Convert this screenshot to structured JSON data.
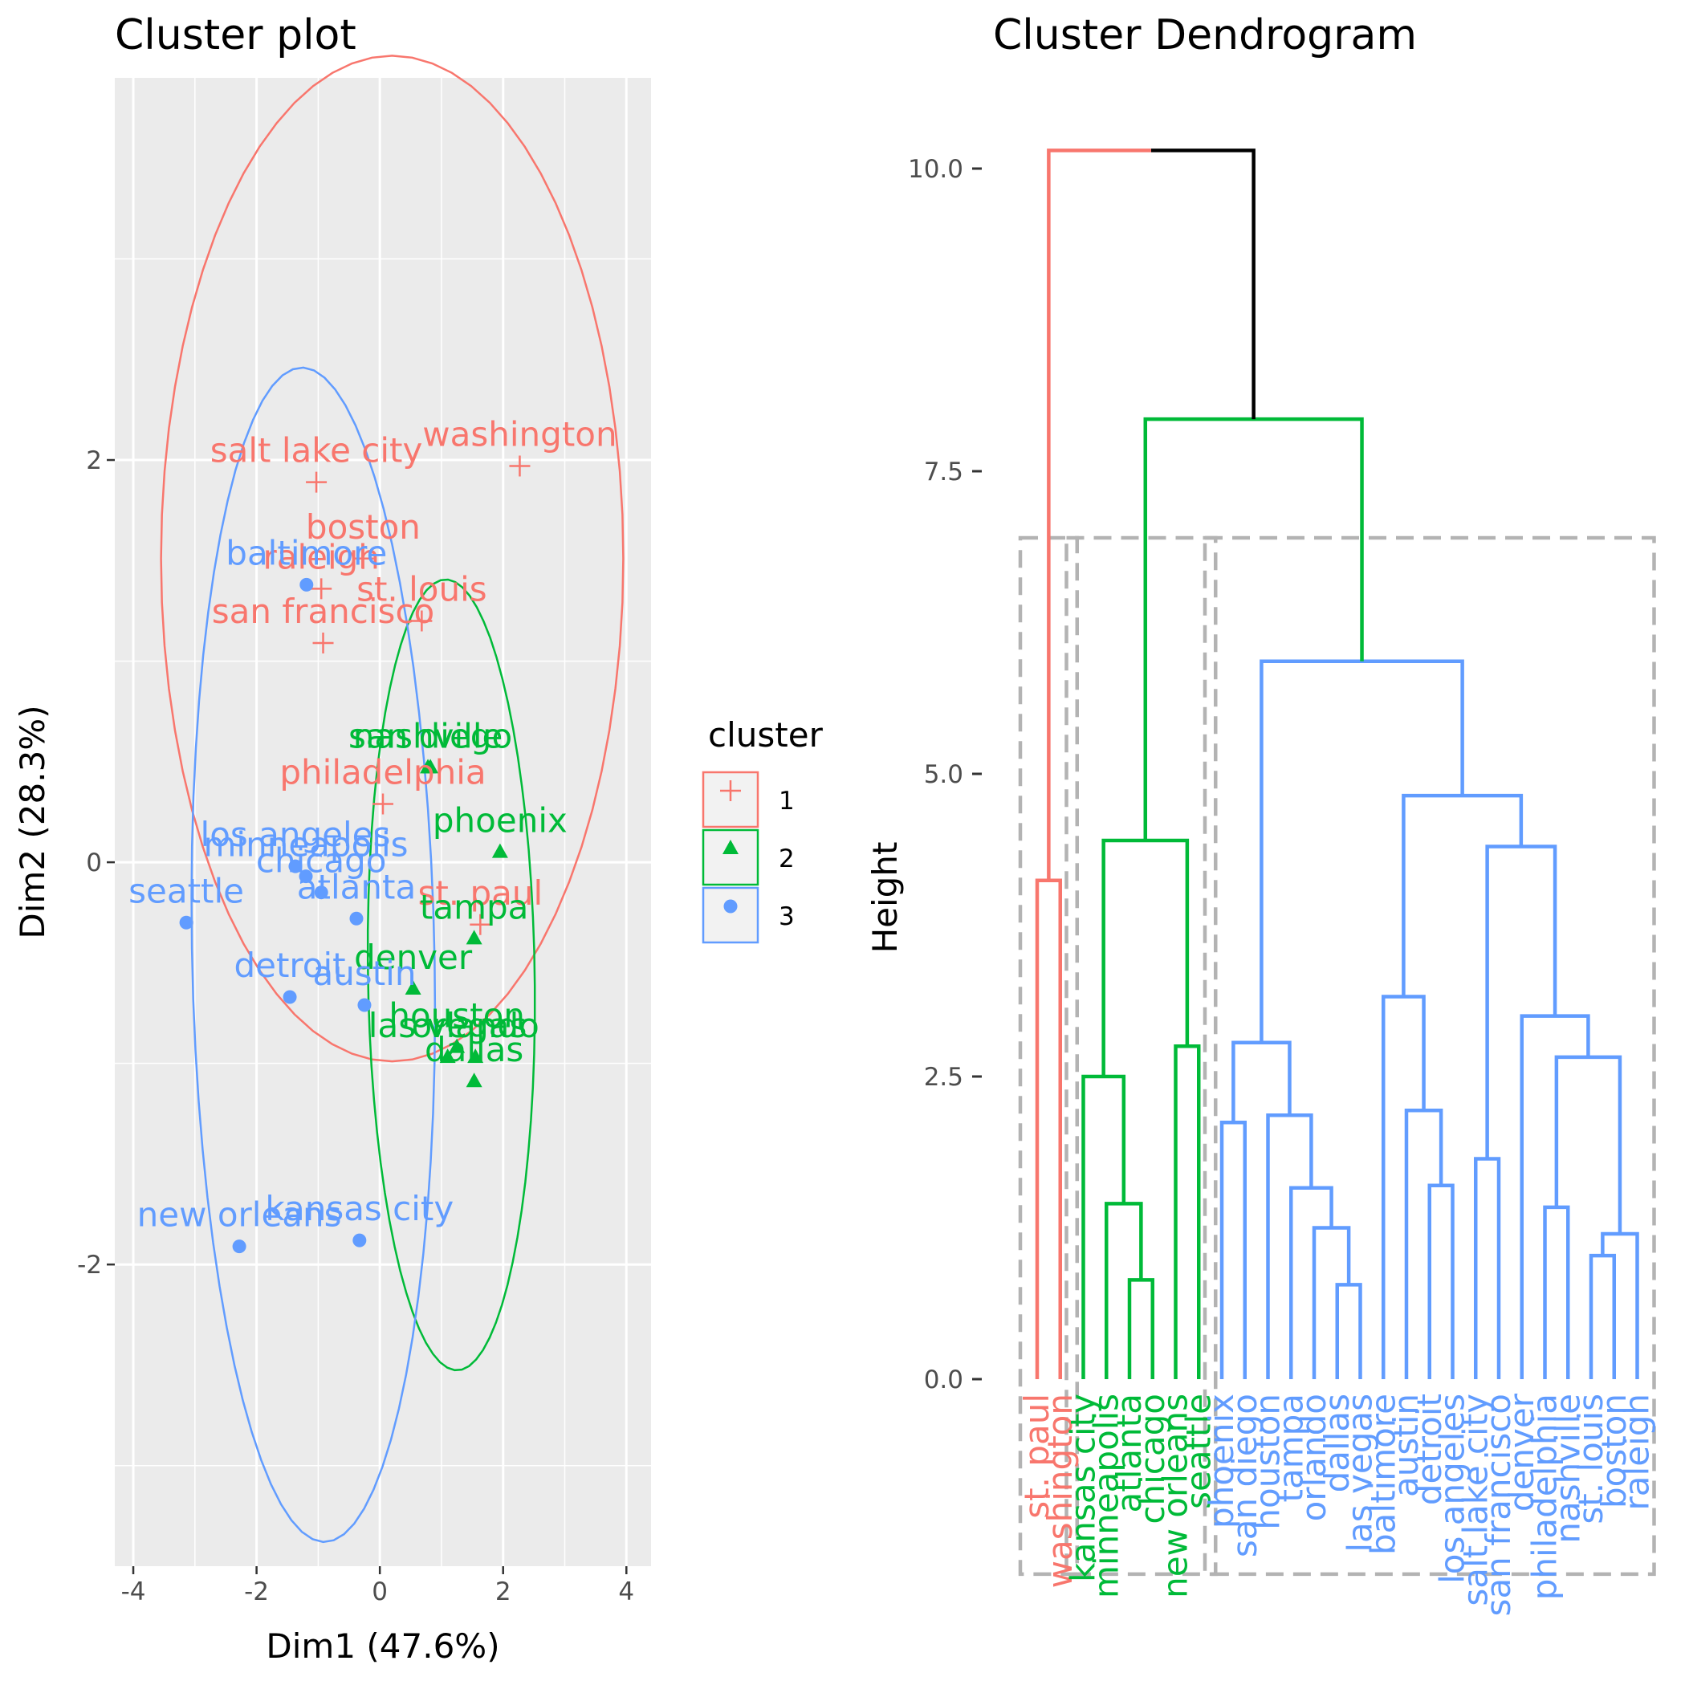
{
  "chart_data": [
    {
      "type": "scatter",
      "title": "Cluster plot",
      "xlabel": "Dim1 (47.6%)",
      "ylabel": "Dim2 (28.3%)",
      "xlim": [
        -4.3,
        4.4
      ],
      "ylim": [
        -3.5,
        3.9
      ],
      "xticks": [
        -4,
        -2,
        0,
        2,
        4
      ],
      "xtick_labels": [
        "-4",
        "-2",
        "0",
        "2",
        "4"
      ],
      "yticks": [
        -2,
        0,
        2
      ],
      "ytick_labels": [
        "-2",
        "0",
        "2"
      ],
      "grid": true,
      "legend": {
        "title": "cluster",
        "position": "right",
        "entries": [
          {
            "label": "1",
            "color": "#F8766D",
            "shape": "plus"
          },
          {
            "label": "2",
            "color": "#00BA38",
            "shape": "triangle"
          },
          {
            "label": "3",
            "color": "#619CFF",
            "shape": "circle"
          }
        ]
      },
      "colors": {
        "1": "#F8766D",
        "2": "#00BA38",
        "3": "#619CFF"
      },
      "points": [
        {
          "label": "washington",
          "cluster": "1",
          "x": 2.27,
          "y": 1.97
        },
        {
          "label": "salt lake city",
          "cluster": "1",
          "x": -1.03,
          "y": 1.89
        },
        {
          "label": "boston",
          "cluster": "1",
          "x": -0.27,
          "y": 1.51
        },
        {
          "label": "raleigh",
          "cluster": "1",
          "x": -0.95,
          "y": 1.36
        },
        {
          "label": "st. louis",
          "cluster": "1",
          "x": 0.68,
          "y": 1.2
        },
        {
          "label": "san francisco",
          "cluster": "1",
          "x": -0.92,
          "y": 1.09
        },
        {
          "label": "philadelphia",
          "cluster": "1",
          "x": 0.05,
          "y": 0.29
        },
        {
          "label": "st. paul",
          "cluster": "1",
          "x": 1.63,
          "y": -0.31
        },
        {
          "label": "nashville",
          "cluster": "2",
          "x": 0.78,
          "y": 0.47
        },
        {
          "label": "san diego",
          "cluster": "2",
          "x": 0.82,
          "y": 0.47
        },
        {
          "label": "phoenix",
          "cluster": "2",
          "x": 1.95,
          "y": 0.05
        },
        {
          "label": "tampa",
          "cluster": "2",
          "x": 1.53,
          "y": -0.38
        },
        {
          "label": "denver",
          "cluster": "2",
          "x": 0.54,
          "y": -0.63
        },
        {
          "label": "houston",
          "cluster": "2",
          "x": 1.25,
          "y": -0.92
        },
        {
          "label": "las vegas",
          "cluster": "2",
          "x": 1.1,
          "y": -0.97
        },
        {
          "label": "orlando",
          "cluster": "2",
          "x": 1.55,
          "y": -0.97
        },
        {
          "label": "dallas",
          "cluster": "2",
          "x": 1.53,
          "y": -1.09
        },
        {
          "label": "baltimore",
          "cluster": "3",
          "x": -1.19,
          "y": 1.38
        },
        {
          "label": "los angeles",
          "cluster": "3",
          "x": -1.37,
          "y": -0.02
        },
        {
          "label": "minneapolis",
          "cluster": "3",
          "x": -1.2,
          "y": -0.07
        },
        {
          "label": "chicago",
          "cluster": "3",
          "x": -0.95,
          "y": -0.15
        },
        {
          "label": "atlanta",
          "cluster": "3",
          "x": -0.38,
          "y": -0.28
        },
        {
          "label": "seattle",
          "cluster": "3",
          "x": -3.14,
          "y": -0.3
        },
        {
          "label": "detroit",
          "cluster": "3",
          "x": -1.46,
          "y": -0.67
        },
        {
          "label": "austin",
          "cluster": "3",
          "x": -0.25,
          "y": -0.71
        },
        {
          "label": "new orleans",
          "cluster": "3",
          "x": -2.28,
          "y": -1.91
        },
        {
          "label": "kansas city",
          "cluster": "3",
          "x": -0.33,
          "y": -1.88
        }
      ],
      "ellipses": [
        {
          "cluster": "1",
          "cx": 0.2,
          "cy": 1.51,
          "rx": 3.75,
          "ry": 2.5,
          "angle_deg": 0.0
        },
        {
          "cluster": "2",
          "cx": 1.16,
          "cy": -0.56,
          "rx": 1.35,
          "ry": 1.97,
          "angle_deg": 5.0
        },
        {
          "cluster": "3",
          "cx": -1.08,
          "cy": -0.46,
          "rx": 1.96,
          "ry": 2.93,
          "angle_deg": 6.5
        }
      ]
    },
    {
      "type": "dendrogram",
      "title": "Cluster Dendrogram",
      "ylabel": "Height",
      "ylim": [
        -1.65,
        10.5
      ],
      "yticks": [
        0,
        2.5,
        5,
        7.5,
        10
      ],
      "ytick_labels": [
        "0.0",
        "2.5",
        "5.0",
        "7.5",
        "10.0"
      ],
      "colors": {
        "1": "#F8766D",
        "2": "#00BA38",
        "3": "#619CFF",
        "root": "#000000",
        "box": "#B3B3B3"
      },
      "leaves": [
        {
          "label": "st. paul",
          "cluster": "1"
        },
        {
          "label": "washington",
          "cluster": "1"
        },
        {
          "label": "kansas city",
          "cluster": "2"
        },
        {
          "label": "minneapolis",
          "cluster": "2"
        },
        {
          "label": "atlanta",
          "cluster": "2"
        },
        {
          "label": "chicago",
          "cluster": "2"
        },
        {
          "label": "new orleans",
          "cluster": "2"
        },
        {
          "label": "seattle",
          "cluster": "2"
        },
        {
          "label": "phoenix",
          "cluster": "3"
        },
        {
          "label": "san diego",
          "cluster": "3"
        },
        {
          "label": "houston",
          "cluster": "3"
        },
        {
          "label": "tampa",
          "cluster": "3"
        },
        {
          "label": "orlando",
          "cluster": "3"
        },
        {
          "label": "dallas",
          "cluster": "3"
        },
        {
          "label": "las vegas",
          "cluster": "3"
        },
        {
          "label": "baltimore",
          "cluster": "3"
        },
        {
          "label": "austin",
          "cluster": "3"
        },
        {
          "label": "detroit",
          "cluster": "3"
        },
        {
          "label": "los angeles",
          "cluster": "3"
        },
        {
          "label": "salt lake city",
          "cluster": "3"
        },
        {
          "label": "san francisco",
          "cluster": "3"
        },
        {
          "label": "denver",
          "cluster": "3"
        },
        {
          "label": "philadelphia",
          "cluster": "3"
        },
        {
          "label": "nashville",
          "cluster": "3"
        },
        {
          "label": "st. louis",
          "cluster": "3"
        },
        {
          "label": "boston",
          "cluster": "3"
        },
        {
          "label": "raleigh",
          "cluster": "3"
        }
      ],
      "merges": [
        {
          "left": 0,
          "right": 1,
          "height": 4.12,
          "cluster": "1"
        },
        {
          "left": 4,
          "right": 5,
          "height": 0.82,
          "cluster": "2"
        },
        {
          "left": 3,
          "right": -2,
          "height": 1.45,
          "cluster": "2"
        },
        {
          "left": 2,
          "right": -3,
          "height": 2.5,
          "cluster": "2"
        },
        {
          "left": 6,
          "right": 7,
          "height": 2.75,
          "cluster": "2"
        },
        {
          "left": -4,
          "right": -5,
          "height": 4.45,
          "cluster": "2"
        },
        {
          "left": 13,
          "right": 14,
          "height": 0.78,
          "cluster": "3"
        },
        {
          "left": 12,
          "right": -7,
          "height": 1.25,
          "cluster": "3"
        },
        {
          "left": 11,
          "right": -8,
          "height": 1.58,
          "cluster": "3"
        },
        {
          "left": 10,
          "right": -9,
          "height": 2.18,
          "cluster": "3"
        },
        {
          "left": 8,
          "right": 9,
          "height": 2.12,
          "cluster": "3"
        },
        {
          "left": -11,
          "right": -10,
          "height": 2.78,
          "cluster": "3"
        },
        {
          "left": 17,
          "right": 18,
          "height": 1.6,
          "cluster": "3"
        },
        {
          "left": 16,
          "right": -13,
          "height": 2.22,
          "cluster": "3"
        },
        {
          "left": 15,
          "right": -14,
          "height": 3.16,
          "cluster": "3"
        },
        {
          "left": 19,
          "right": 20,
          "height": 1.82,
          "cluster": "3"
        },
        {
          "left": 22,
          "right": 23,
          "height": 1.42,
          "cluster": "3"
        },
        {
          "left": 24,
          "right": 25,
          "height": 1.02,
          "cluster": "3"
        },
        {
          "left": -18,
          "right": 26,
          "height": 1.2,
          "cluster": "3"
        },
        {
          "left": -17,
          "right": -19,
          "height": 2.66,
          "cluster": "3"
        },
        {
          "left": 21,
          "right": -20,
          "height": 3.0,
          "cluster": "3"
        },
        {
          "left": -16,
          "right": -21,
          "height": 4.4,
          "cluster": "3"
        },
        {
          "left": -15,
          "right": -22,
          "height": 4.82,
          "cluster": "3"
        },
        {
          "left": -12,
          "right": -23,
          "height": 5.93,
          "cluster": "3"
        },
        {
          "left": -6,
          "right": -24,
          "height": 7.93,
          "cluster": "2"
        },
        {
          "left": -1,
          "right": -25,
          "height": 10.15,
          "cluster": "root"
        }
      ],
      "rect_groups": [
        [
          0,
          1
        ],
        [
          2,
          7
        ],
        [
          8,
          26
        ]
      ],
      "rect_height": 6.95
    }
  ]
}
